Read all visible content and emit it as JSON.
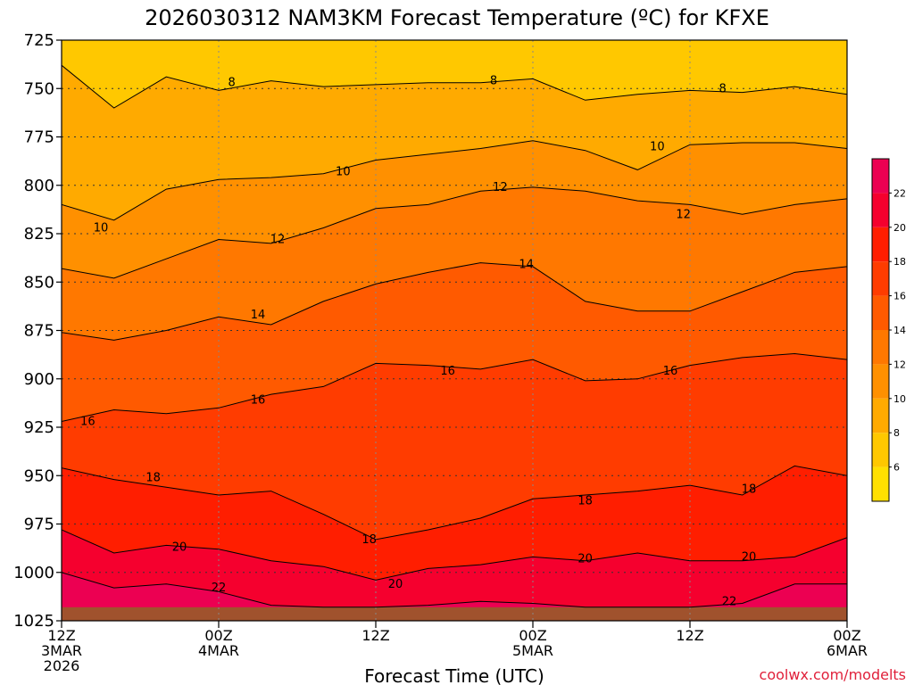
{
  "chart_data": {
    "type": "heatmap",
    "title": "2026030312 NAM3KM Forecast Temperature (ºC) for KFXE",
    "xlabel": "Forecast Time (UTC)",
    "ylabel": "",
    "credit": "coolwx.com/modelts",
    "x_range_hours": [
      0,
      60
    ],
    "x_ticks": [
      {
        "hour": 0,
        "lines": [
          "12Z",
          "3MAR",
          "2026"
        ]
      },
      {
        "hour": 12,
        "lines": [
          "00Z",
          "4MAR"
        ]
      },
      {
        "hour": 24,
        "lines": [
          "12Z"
        ]
      },
      {
        "hour": 36,
        "lines": [
          "00Z",
          "5MAR"
        ]
      },
      {
        "hour": 48,
        "lines": [
          "12Z"
        ]
      },
      {
        "hour": 60,
        "lines": [
          "00Z",
          "6MAR"
        ]
      }
    ],
    "y_range_hpa": [
      1025,
      725
    ],
    "y_ticks": [
      725,
      750,
      775,
      800,
      825,
      850,
      875,
      900,
      925,
      950,
      975,
      1000,
      1025
    ],
    "surface_pressure_hpa": 1018,
    "colorbar": {
      "levels": [
        4,
        6,
        8,
        10,
        12,
        14,
        16,
        18,
        20,
        22,
        24
      ],
      "colors": [
        "#ffe000",
        "#ffc800",
        "#ffaa00",
        "#ff9000",
        "#ff7800",
        "#ff5a00",
        "#ff3c00",
        "#ff1e00",
        "#f5002e",
        "#ec0052"
      ],
      "tick_labels": [
        "6",
        "8",
        "10",
        "12",
        "14",
        "16",
        "18",
        "20",
        "22"
      ]
    },
    "series": [
      {
        "name": "8C isotherm",
        "level": 8,
        "x": [
          0,
          4,
          8,
          12,
          16,
          20,
          24,
          28,
          32,
          36,
          40,
          44,
          48,
          52,
          56,
          60
        ],
        "pressure": [
          738,
          760,
          744,
          751,
          746,
          749,
          748,
          747,
          747,
          745,
          756,
          753,
          751,
          752,
          749,
          753
        ],
        "labels": [
          {
            "x": 13,
            "p": 747,
            "text": "8"
          },
          {
            "x": 33,
            "p": 746,
            "text": "8"
          },
          {
            "x": 50.5,
            "p": 750,
            "text": "8"
          }
        ]
      },
      {
        "name": "10C isotherm",
        "level": 10,
        "x": [
          0,
          4,
          8,
          12,
          16,
          20,
          24,
          28,
          32,
          36,
          40,
          44,
          48,
          52,
          56,
          60
        ],
        "pressure": [
          810,
          818,
          802,
          797,
          796,
          794,
          787,
          784,
          781,
          777,
          782,
          792,
          779,
          778,
          778,
          781
        ],
        "labels": [
          {
            "x": 3,
            "p": 822,
            "text": "10"
          },
          {
            "x": 21.5,
            "p": 793,
            "text": "10"
          },
          {
            "x": 45.5,
            "p": 780,
            "text": "10"
          }
        ]
      },
      {
        "name": "12C isotherm",
        "level": 12,
        "x": [
          0,
          4,
          8,
          12,
          16,
          20,
          24,
          28,
          32,
          36,
          40,
          44,
          48,
          52,
          56,
          60
        ],
        "pressure": [
          843,
          848,
          838,
          828,
          830,
          822,
          812,
          810,
          803,
          801,
          803,
          808,
          810,
          815,
          810,
          807
        ],
        "labels": [
          {
            "x": 16.5,
            "p": 828,
            "text": "12"
          },
          {
            "x": 33.5,
            "p": 801,
            "text": "12"
          },
          {
            "x": 47.5,
            "p": 815,
            "text": "12"
          }
        ]
      },
      {
        "name": "14C isotherm",
        "level": 14,
        "x": [
          0,
          4,
          8,
          12,
          16,
          20,
          24,
          28,
          32,
          36,
          40,
          44,
          48,
          52,
          56,
          60
        ],
        "pressure": [
          876,
          880,
          875,
          868,
          872,
          860,
          851,
          845,
          840,
          842,
          860,
          865,
          865,
          855,
          845,
          842
        ],
        "labels": [
          {
            "x": 15,
            "p": 867,
            "text": "14"
          },
          {
            "x": 35.5,
            "p": 841,
            "text": "14"
          }
        ]
      },
      {
        "name": "16C isotherm",
        "level": 16,
        "x": [
          0,
          4,
          8,
          12,
          16,
          20,
          24,
          28,
          32,
          36,
          40,
          44,
          48,
          52,
          56,
          60
        ],
        "pressure": [
          922,
          916,
          918,
          915,
          908,
          904,
          892,
          893,
          895,
          890,
          901,
          900,
          893,
          889,
          887,
          890
        ],
        "labels": [
          {
            "x": 2,
            "p": 922,
            "text": "16"
          },
          {
            "x": 15,
            "p": 911,
            "text": "16"
          },
          {
            "x": 29.5,
            "p": 896,
            "text": "16"
          },
          {
            "x": 46.5,
            "p": 896,
            "text": "16"
          }
        ]
      },
      {
        "name": "18C isotherm",
        "level": 18,
        "x": [
          0,
          4,
          8,
          12,
          16,
          20,
          24,
          28,
          32,
          36,
          40,
          44,
          48,
          52,
          56,
          60
        ],
        "pressure": [
          946,
          952,
          956,
          960,
          958,
          970,
          983,
          978,
          972,
          962,
          960,
          958,
          955,
          960,
          945,
          950
        ],
        "labels": [
          {
            "x": 7,
            "p": 951,
            "text": "18"
          },
          {
            "x": 23.5,
            "p": 983,
            "text": "18"
          },
          {
            "x": 40,
            "p": 963,
            "text": "18"
          },
          {
            "x": 52.5,
            "p": 957,
            "text": "18"
          }
        ]
      },
      {
        "name": "20C isotherm",
        "level": 20,
        "x": [
          0,
          4,
          8,
          12,
          16,
          20,
          24,
          28,
          32,
          36,
          40,
          44,
          48,
          52,
          56,
          60
        ],
        "pressure": [
          978,
          990,
          986,
          988,
          994,
          997,
          1004,
          998,
          996,
          992,
          994,
          990,
          994,
          994,
          992,
          982
        ],
        "labels": [
          {
            "x": 9,
            "p": 987,
            "text": "20"
          },
          {
            "x": 25.5,
            "p": 1006,
            "text": "20"
          },
          {
            "x": 40,
            "p": 993,
            "text": "20"
          },
          {
            "x": 52.5,
            "p": 992,
            "text": "20"
          }
        ]
      },
      {
        "name": "22C isotherm",
        "level": 22,
        "x": [
          0,
          4,
          8,
          12,
          16,
          20,
          24,
          28,
          32,
          36,
          40,
          44,
          48,
          52,
          56,
          60
        ],
        "pressure": [
          1000,
          1008,
          1006,
          1010,
          1017,
          1018,
          1018,
          1017,
          1015,
          1016,
          1018,
          1018,
          1018,
          1016,
          1006,
          1006
        ],
        "labels": [
          {
            "x": 12,
            "p": 1008,
            "text": "22"
          },
          {
            "x": 51,
            "p": 1015,
            "text": "22"
          }
        ]
      }
    ],
    "isotherm_boundaries": {
      "6to8": {
        "level": 6,
        "x": [
          0,
          60
        ],
        "pressure": [
          725,
          725
        ]
      }
    }
  }
}
